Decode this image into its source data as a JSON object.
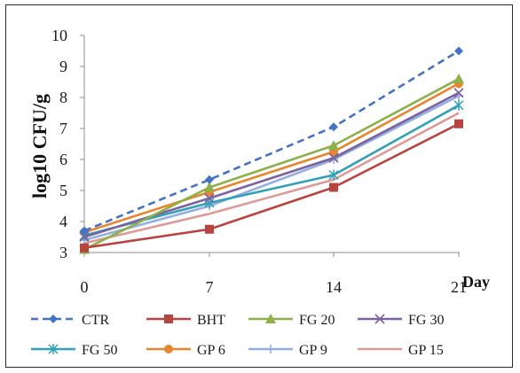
{
  "chart_data": {
    "type": "line",
    "x": [
      0,
      7,
      14,
      21
    ],
    "xticks": [
      "0",
      "7",
      "14",
      "21"
    ],
    "xlabel": "Day",
    "ylabel": "log10 CFU/g",
    "ylim": [
      3,
      10
    ],
    "yticks": [
      "3",
      "4",
      "5",
      "6",
      "7",
      "8",
      "9",
      "10"
    ],
    "grid": false,
    "legend_position": "bottom",
    "series": [
      {
        "name": "CTR",
        "values": [
          3.7,
          5.35,
          7.05,
          9.5
        ],
        "color": "#4472c4",
        "marker": "diamond",
        "dash": true
      },
      {
        "name": "BHT",
        "values": [
          3.15,
          3.75,
          5.1,
          7.15
        ],
        "color": "#b84440",
        "marker": "square",
        "dash": false
      },
      {
        "name": "FG 20",
        "values": [
          3.1,
          5.1,
          6.45,
          8.6
        ],
        "color": "#8db04a",
        "marker": "triangle",
        "dash": false
      },
      {
        "name": "FG 30",
        "values": [
          3.5,
          4.75,
          6.05,
          8.15
        ],
        "color": "#7b62a0",
        "marker": "x",
        "dash": false
      },
      {
        "name": "FG 50",
        "values": [
          3.55,
          4.6,
          5.5,
          7.75
        ],
        "color": "#31a0b8",
        "marker": "asterisk",
        "dash": false
      },
      {
        "name": "GP 6",
        "values": [
          3.65,
          4.95,
          6.25,
          8.45
        ],
        "color": "#e8862f",
        "marker": "circle",
        "dash": false
      },
      {
        "name": "GP 9",
        "values": [
          3.4,
          4.5,
          6.0,
          8.05
        ],
        "color": "#93aee0",
        "marker": "plus",
        "dash": false
      },
      {
        "name": "GP 15",
        "values": [
          3.3,
          4.25,
          5.35,
          7.5
        ],
        "color": "#dc9a98",
        "marker": "none",
        "dash": false
      }
    ]
  }
}
